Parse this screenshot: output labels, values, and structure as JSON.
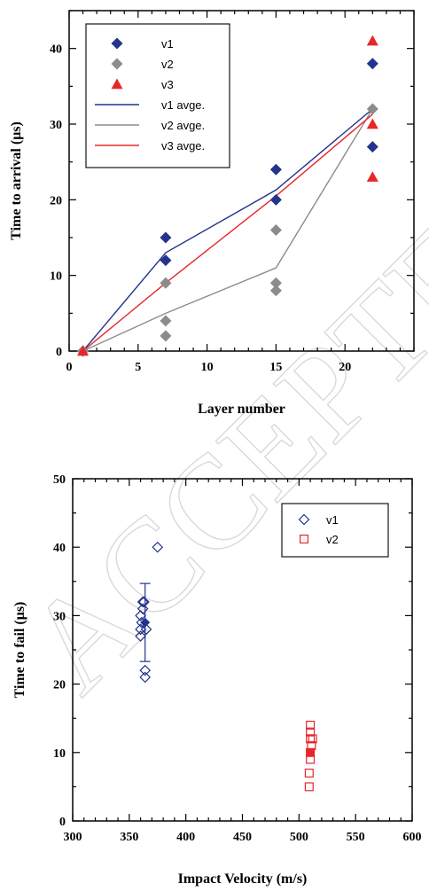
{
  "watermark": "ACCEPTED MANUSCRIPT",
  "chart_data": [
    {
      "type": "scatter",
      "xlabel": "Layer number",
      "ylabel": "Time to arrival (μs)",
      "xlim": [
        0,
        25
      ],
      "ylim": [
        0,
        45
      ],
      "xticks": [
        0,
        5,
        10,
        15,
        20
      ],
      "yticks": [
        0,
        10,
        20,
        30,
        40
      ],
      "legend_position": "top-left",
      "series": [
        {
          "name": "v1",
          "kind": "marker",
          "marker": "diamond",
          "color": "#23348c",
          "points": [
            [
              1,
              0
            ],
            [
              7,
              15
            ],
            [
              7,
              12
            ],
            [
              15,
              24
            ],
            [
              15,
              20
            ],
            [
              22,
              38
            ],
            [
              22,
              27
            ]
          ]
        },
        {
          "name": "v2",
          "kind": "marker",
          "marker": "diamond",
          "color": "#8c8c8c",
          "points": [
            [
              1,
              0
            ],
            [
              7,
              9
            ],
            [
              7,
              4
            ],
            [
              7,
              2
            ],
            [
              15,
              16
            ],
            [
              15,
              9
            ],
            [
              15,
              8
            ],
            [
              22,
              32
            ]
          ]
        },
        {
          "name": "v3",
          "kind": "marker",
          "marker": "triangle",
          "color": "#e8262a",
          "points": [
            [
              1,
              0
            ],
            [
              22,
              41
            ],
            [
              22,
              30
            ],
            [
              22,
              23
            ]
          ]
        },
        {
          "name": "v1 avge.",
          "kind": "line",
          "color": "#23348c",
          "points": [
            [
              1,
              0
            ],
            [
              7,
              13
            ],
            [
              15,
              21.3
            ],
            [
              22,
              32
            ]
          ]
        },
        {
          "name": "v2 avge.",
          "kind": "line",
          "color": "#8c8c8c",
          "points": [
            [
              1,
              0
            ],
            [
              7,
              5
            ],
            [
              15,
              11
            ],
            [
              22,
              32
            ]
          ]
        },
        {
          "name": "v3 avge.",
          "kind": "line",
          "color": "#e8262a",
          "points": [
            [
              1,
              0
            ],
            [
              7,
              9
            ],
            [
              15,
              20.5
            ],
            [
              22,
              31.3
            ]
          ]
        }
      ]
    },
    {
      "type": "scatter",
      "xlabel": "Impact Velocity (m/s)",
      "ylabel": "Time to fail (μs)",
      "xlim": [
        300,
        600
      ],
      "ylim": [
        0,
        50
      ],
      "xticks": [
        300,
        350,
        400,
        450,
        500,
        550,
        600
      ],
      "yticks": [
        0,
        10,
        20,
        30,
        40,
        50
      ],
      "legend_position": "top-right",
      "series": [
        {
          "name": "v1",
          "marker": "diamond-open",
          "color": "#23348c",
          "points": [
            [
              360,
              27
            ],
            [
              360,
              28
            ],
            [
              361,
              29
            ],
            [
              360,
              30
            ],
            [
              362,
              31
            ],
            [
              362,
              32
            ],
            [
              363,
              32
            ],
            [
              364,
              21
            ],
            [
              364,
              22
            ],
            [
              365,
              28
            ],
            [
              375,
              40
            ]
          ],
          "mean": {
            "x": 364,
            "y": 29,
            "err": 5.7
          }
        },
        {
          "name": "v2",
          "marker": "square-open",
          "color": "#e8262a",
          "points": [
            [
              509,
              5
            ],
            [
              509,
              7
            ],
            [
              510,
              9
            ],
            [
              510,
              10
            ],
            [
              511,
              11
            ],
            [
              510,
              12
            ],
            [
              512,
              12
            ],
            [
              510,
              13
            ],
            [
              510,
              14
            ]
          ],
          "mean": {
            "x": 510,
            "y": 10,
            "err": 0
          }
        }
      ]
    }
  ]
}
